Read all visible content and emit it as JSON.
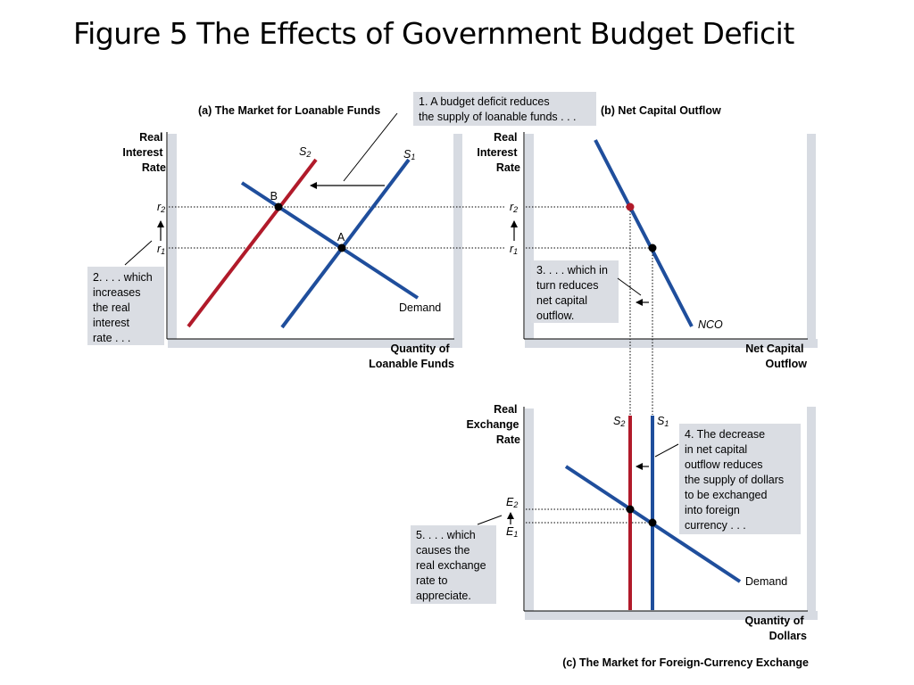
{
  "title": "Figure 5 The Effects of Government Budget Deficit",
  "panels": {
    "a": {
      "title": "(a) The Market for Loanable Funds",
      "y_label": [
        "Real",
        "Interest",
        "Rate"
      ],
      "x_label": [
        "Quantity of",
        "Loanable Funds"
      ],
      "curves": {
        "s2_main": "S",
        "s2_sub": "2",
        "s1_main": "S",
        "s1_sub": "1",
        "demand": "Demand"
      },
      "points": {
        "b": "B",
        "a": "A"
      },
      "ticks": {
        "r2_main": "r",
        "r2_sub": "2",
        "r1_main": "r",
        "r1_sub": "1"
      }
    },
    "b": {
      "title": "(b) Net Capital Outflow",
      "y_label": [
        "Real",
        "Interest",
        "Rate"
      ],
      "x_label": [
        "Net Capital",
        "Outflow"
      ],
      "curves": {
        "nco": "NCO"
      },
      "ticks": {
        "r2_main": "r",
        "r2_sub": "2",
        "r1_main": "r",
        "r1_sub": "1"
      }
    },
    "c": {
      "title": "(c) The Market for Foreign-Currency Exchange",
      "y_label": [
        "Real",
        "Exchange",
        "Rate"
      ],
      "x_label": [
        "Quantity of",
        "Dollars"
      ],
      "curves": {
        "s2_main": "S",
        "s2_sub": "2",
        "s1_main": "S",
        "s1_sub": "1",
        "demand": "Demand"
      },
      "ticks": {
        "e2_main": "E",
        "e2_sub": "2",
        "e1_main": "E",
        "e1_sub": "1"
      }
    }
  },
  "notes": {
    "n1": [
      "1. A budget deficit reduces",
      "the supply of loanable funds . . ."
    ],
    "n2": [
      "2. . . . which",
      "increases",
      "the real",
      "interest",
      "rate . . ."
    ],
    "n3": [
      "3. . . . which in",
      "turn reduces",
      "net capital",
      "outflow."
    ],
    "n4": [
      "4. The decrease",
      "in net capital",
      "outflow reduces",
      "the supply of dollars",
      "to be exchanged",
      "into foreign",
      "currency . . ."
    ],
    "n5": [
      "5. . . . which",
      "causes the",
      "real exchange",
      "rate to",
      "appreciate."
    ]
  },
  "colors": {
    "blue": "#1f4e9c",
    "red": "#b11a2a",
    "note_bg": "#dadde3",
    "shadow": "#d7dbe2"
  }
}
